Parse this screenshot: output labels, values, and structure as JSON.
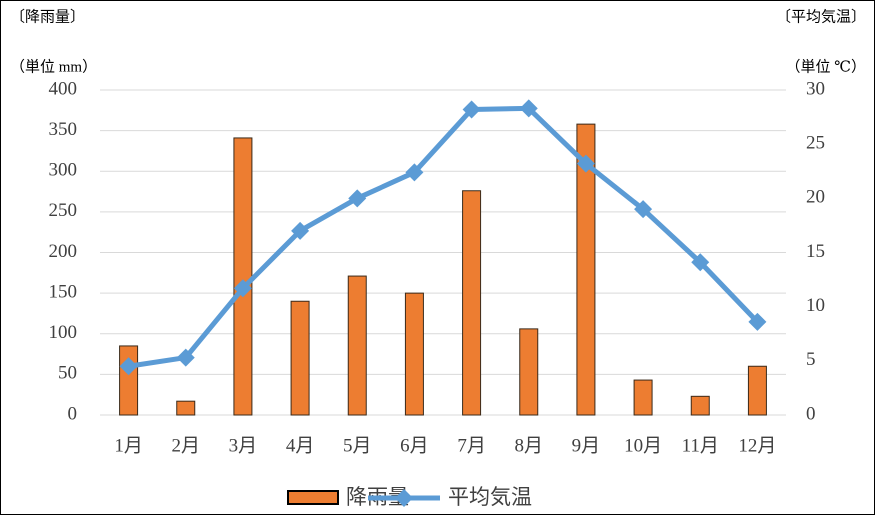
{
  "chart_data": {
    "type": "bar_line",
    "y_label": "〔降雨量〕",
    "y2_label": "〔平均気温〕",
    "y_unit": "（単位 mm）",
    "y2_unit": "（単位 ℃）",
    "categories": [
      "1月",
      "2月",
      "3月",
      "4月",
      "5月",
      "6月",
      "7月",
      "8月",
      "9月",
      "10月",
      "11月",
      "12月"
    ],
    "series": [
      {
        "name": "降雨量",
        "type": "bar",
        "color": "#ed7d31",
        "axis": "y",
        "values": [
          85,
          17,
          341,
          140,
          171,
          150,
          276,
          106,
          358,
          43,
          23,
          60
        ]
      },
      {
        "name": "平均気温",
        "type": "line",
        "color": "#5b9bd5",
        "axis": "y2",
        "values": [
          4.5,
          5.3,
          11.7,
          17.0,
          20.0,
          22.4,
          28.2,
          28.3,
          23.2,
          19.0,
          14.1,
          8.6
        ]
      }
    ],
    "ylim": [
      0,
      400
    ],
    "yticks": [
      0,
      50,
      100,
      150,
      200,
      250,
      300,
      350,
      400
    ],
    "y2lim": [
      0,
      30
    ],
    "y2ticks": [
      0,
      5,
      10,
      15,
      20,
      25,
      30
    ],
    "grid": true,
    "legend": "bottom"
  }
}
